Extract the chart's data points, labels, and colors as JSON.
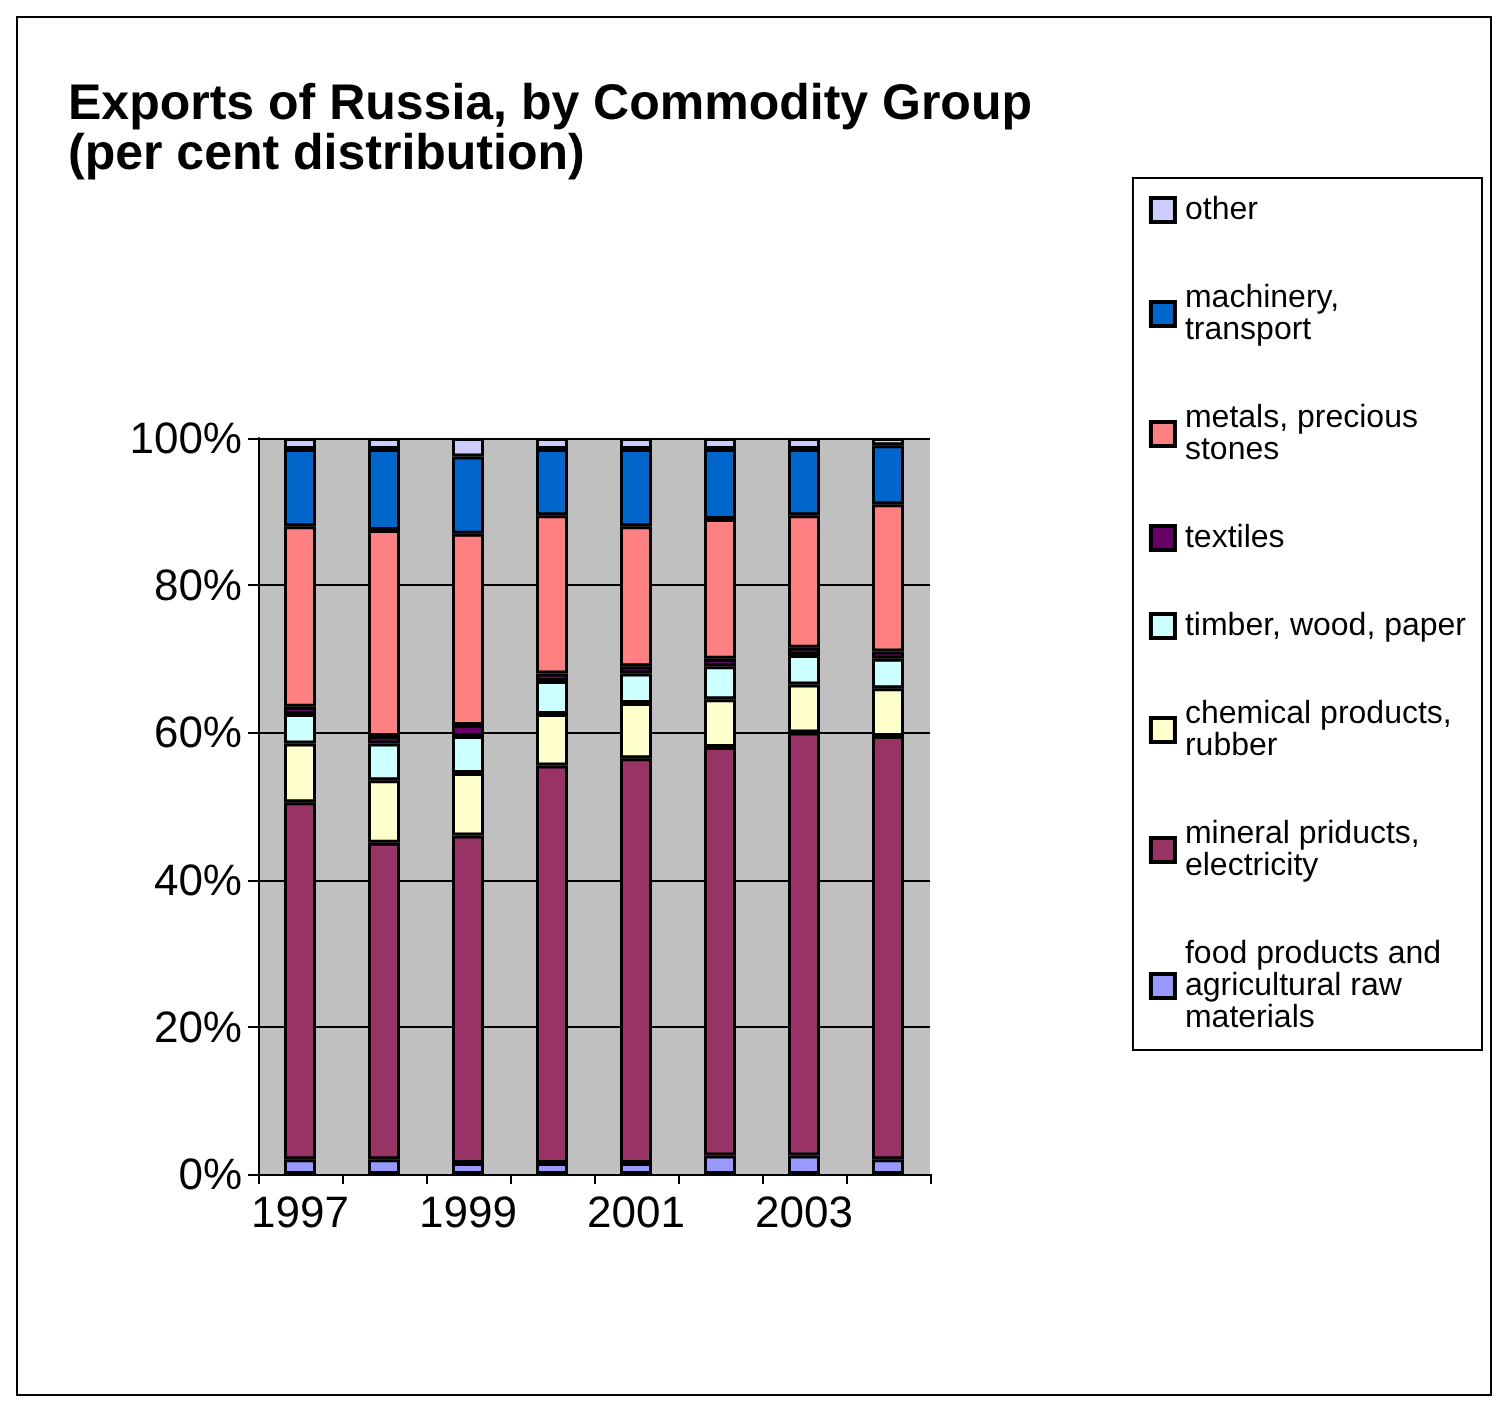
{
  "chart_data": {
    "type": "bar",
    "title": "Exports of Russia, by Commodity Group (per cent distribution)",
    "stacked": true,
    "categories": [
      "1997",
      null,
      "1999",
      null,
      "2001",
      null,
      "2003",
      null
    ],
    "series": [
      {
        "name": "food products and agricultural raw materials",
        "color": "#9999ff",
        "values": [
          2,
          2,
          1.5,
          1.5,
          1.5,
          2.5,
          2.5,
          2
        ]
      },
      {
        "name": "mineral priducts, electricity",
        "color": "#993366",
        "values": [
          48.5,
          43,
          44.5,
          54,
          55,
          55.5,
          57.5,
          57.5
        ]
      },
      {
        "name": "chemical products, rubber",
        "color": "#ffffcc",
        "values": [
          8,
          8.5,
          8.5,
          7,
          7.5,
          6.5,
          6.5,
          6.5
        ]
      },
      {
        "name": "timber, wood, paper",
        "color": "#ccffff",
        "values": [
          4,
          5,
          5,
          4.5,
          4,
          4.5,
          4,
          4
        ]
      },
      {
        "name": "textiles",
        "color": "#660066",
        "values": [
          1,
          1,
          1.5,
          1,
          1,
          1,
          1,
          1
        ]
      },
      {
        "name": "metals, precious stones",
        "color": "#ff8080",
        "values": [
          24.5,
          28,
          26,
          21.5,
          19,
          19,
          18,
          20
        ]
      },
      {
        "name": "machinery, transport",
        "color": "#0066cc",
        "values": [
          10.5,
          11,
          10.5,
          9,
          10.5,
          9.5,
          9,
          8
        ]
      },
      {
        "name": "other",
        "color": "#ccccff",
        "values": [
          1.5,
          1.5,
          2.5,
          1.5,
          1.5,
          1.5,
          1.5,
          1
        ]
      }
    ],
    "ylim": [
      0,
      100
    ],
    "yticks": [
      {
        "value": 0,
        "label": "0%"
      },
      {
        "value": 20,
        "label": "20%"
      },
      {
        "value": 40,
        "label": "40%"
      },
      {
        "value": 60,
        "label": "60%"
      },
      {
        "value": 80,
        "label": "80%"
      },
      {
        "value": 100,
        "label": "100%"
      }
    ],
    "grid": "y",
    "legend": "right"
  }
}
